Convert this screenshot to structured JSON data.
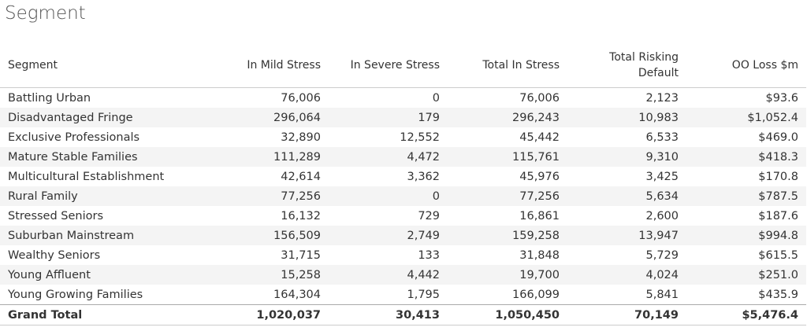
{
  "title": "Segment",
  "table": {
    "columns": [
      "Segment",
      "In Mild Stress",
      "In Severe Stress",
      "Total In Stress",
      "Total Risking Default",
      "OO Loss $m"
    ],
    "rows": [
      [
        "Battling Urban",
        "76,006",
        "0",
        "76,006",
        "2,123",
        "$93.6"
      ],
      [
        "Disadvantaged Fringe",
        "296,064",
        "179",
        "296,243",
        "10,983",
        "$1,052.4"
      ],
      [
        "Exclusive Professionals",
        "32,890",
        "12,552",
        "45,442",
        "6,533",
        "$469.0"
      ],
      [
        "Mature Stable Families",
        "111,289",
        "4,472",
        "115,761",
        "9,310",
        "$418.3"
      ],
      [
        "Multicultural Establishment",
        "42,614",
        "3,362",
        "45,976",
        "3,425",
        "$170.8"
      ],
      [
        "Rural Family",
        "77,256",
        "0",
        "77,256",
        "5,634",
        "$787.5"
      ],
      [
        "Stressed Seniors",
        "16,132",
        "729",
        "16,861",
        "2,600",
        "$187.6"
      ],
      [
        "Suburban Mainstream",
        "156,509",
        "2,749",
        "159,258",
        "13,947",
        "$994.8"
      ],
      [
        "Wealthy Seniors",
        "31,715",
        "133",
        "31,848",
        "5,729",
        "$615.5"
      ],
      [
        "Young Affluent",
        "15,258",
        "4,442",
        "19,700",
        "4,024",
        "$251.0"
      ],
      [
        "Young Growing Families",
        "164,304",
        "1,795",
        "166,099",
        "5,841",
        "$435.9"
      ]
    ],
    "total": [
      "Grand Total",
      "1,020,037",
      "30,413",
      "1,050,450",
      "70,149",
      "$5,476.4"
    ]
  }
}
